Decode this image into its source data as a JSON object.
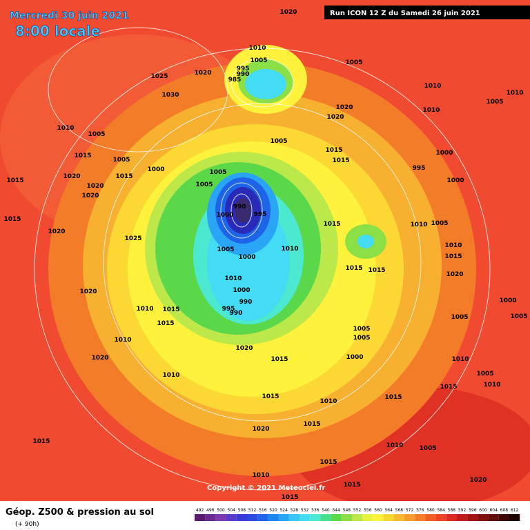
{
  "header": {
    "date": "Mercredi 30 juin 2021",
    "time": "8:00 locale",
    "run": "Run ICON 12 Z du Samedi 26 juin 2021"
  },
  "footer": {
    "title": "Géop. Z500 & pression au sol",
    "lead": "(+ 90h)",
    "copyright": "Copyright © 2021 Meteociel.fr"
  },
  "legend": {
    "values": [
      492,
      496,
      500,
      504,
      508,
      512,
      516,
      520,
      524,
      528,
      532,
      536,
      540,
      544,
      548,
      552,
      556,
      560,
      564,
      568,
      572,
      576,
      580,
      584,
      588,
      592,
      596,
      600,
      604,
      608,
      612
    ],
    "colors": [
      "#5a1a6e",
      "#6a2a8e",
      "#7a3aae",
      "#5a3ac8",
      "#3a3ad8",
      "#2a4ae0",
      "#1e64e8",
      "#1e84f0",
      "#2aa4f4",
      "#3ac4f8",
      "#44dcf4",
      "#4ce8d0",
      "#48e08c",
      "#5ad84a",
      "#8ae044",
      "#bce84a",
      "#e8f040",
      "#fff23c",
      "#fcd834",
      "#f8b830",
      "#f59a2c",
      "#f27c28",
      "#f05e26",
      "#ee4224",
      "#dc2a20",
      "#c01c1c",
      "#a01414",
      "#801010",
      "#600c0c",
      "#400808",
      "#200404"
    ]
  },
  "pressure_labels": [
    "1020",
    "1010",
    "1005",
    "995",
    "990",
    "985",
    "1025",
    "1030",
    "1020",
    "1005",
    "1010",
    "1010",
    "1020",
    "1020",
    "1010",
    "1005",
    "1005",
    "1015",
    "1015",
    "1000",
    "995",
    "1000",
    "1010",
    "1005",
    "1015",
    "1005",
    "1000",
    "1015",
    "1020",
    "1020",
    "1020",
    "1015",
    "1005",
    "1005",
    "990",
    "995",
    "1000",
    "1015",
    "1020",
    "1025",
    "1015",
    "1010",
    "1010",
    "1005",
    "1000",
    "1015",
    "1015",
    "1010",
    "1000",
    "990",
    "995",
    "990",
    "1020",
    "1010",
    "1015",
    "1015",
    "1010",
    "1005",
    "1005",
    "1000",
    "1020",
    "1015",
    "1020",
    "1010",
    "1015",
    "1010",
    "1015",
    "1015",
    "1020",
    "1015",
    "1010",
    "1015",
    "1005",
    "1010",
    "1015",
    "1015",
    "1020",
    "1000",
    "1005",
    "1005",
    "1010",
    "1005",
    "1015",
    "1010",
    "1020",
    "1015",
    "1010",
    "1005"
  ]
}
